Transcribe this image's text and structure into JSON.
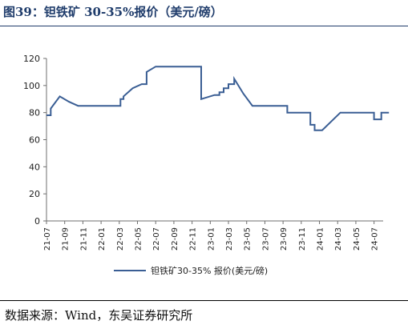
{
  "figure": {
    "title": "图39：钽铁矿 30-35%报价（美元/磅）",
    "source": "数据来源：Wind，东吴证券研究所"
  },
  "chart_data": {
    "type": "line",
    "title": "",
    "xlabel": "",
    "ylabel": "",
    "ylim": [
      0,
      120
    ],
    "yticks": [
      0,
      20,
      40,
      60,
      80,
      100,
      120
    ],
    "x_range": [
      "2021-07",
      "2024-08"
    ],
    "xtick_labels": [
      "21-07",
      "21-09",
      "21-11",
      "22-01",
      "22-03",
      "22-05",
      "22-07",
      "22-09",
      "22-11",
      "23-01",
      "23-03",
      "23-05",
      "23-07",
      "23-09",
      "23-11",
      "24-01",
      "24-03",
      "24-05",
      "24-07"
    ],
    "grid": false,
    "legend_position": "bottom",
    "series": [
      {
        "name": "钽铁矿30-35% 报价(美元/磅)",
        "color": "#3a5e94",
        "points": [
          [
            "2021-07",
            78
          ],
          [
            "2021-07-15",
            83
          ],
          [
            "2021-08-15",
            92
          ],
          [
            "2021-09-15",
            88
          ],
          [
            "2021-10-15",
            85
          ],
          [
            "2022-03-01",
            85
          ],
          [
            "2022-03-05",
            90
          ],
          [
            "2022-03-15",
            92
          ],
          [
            "2022-04-15",
            98
          ],
          [
            "2022-05-15",
            101
          ],
          [
            "2022-06-01",
            110
          ],
          [
            "2022-07-01",
            114
          ],
          [
            "2022-11-25",
            114
          ],
          [
            "2022-12-01",
            90
          ],
          [
            "2023-01-15",
            93
          ],
          [
            "2023-02-01",
            95
          ],
          [
            "2023-02-15",
            98
          ],
          [
            "2023-03-01",
            101
          ],
          [
            "2023-03-20",
            105
          ],
          [
            "2023-04-20",
            94
          ],
          [
            "2023-05-20",
            85
          ],
          [
            "2023-09-10",
            85
          ],
          [
            "2023-09-15",
            80
          ],
          [
            "2023-11-25",
            80
          ],
          [
            "2023-12-01",
            71
          ],
          [
            "2023-12-15",
            67
          ],
          [
            "2024-01-10",
            67
          ],
          [
            "2024-03-10",
            80
          ],
          [
            "2024-06-25",
            80
          ],
          [
            "2024-07-01",
            75
          ],
          [
            "2024-07-20",
            75
          ],
          [
            "2024-07-25",
            80
          ],
          [
            "2024-08-20",
            80
          ]
        ]
      }
    ]
  }
}
